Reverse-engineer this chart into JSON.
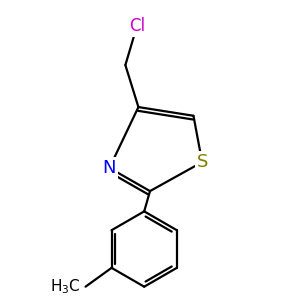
{
  "background_color": "#ffffff",
  "atom_colors": {
    "Cl": "#cc00cc",
    "N": "#0000ff",
    "S": "#808000",
    "C": "#000000",
    "H": "#000000"
  },
  "bond_color": "#000000",
  "bond_width": 1.6,
  "figsize": [
    3.0,
    3.0
  ],
  "dpi": 100,
  "xlim": [
    0,
    10
  ],
  "ylim": [
    0,
    10
  ]
}
